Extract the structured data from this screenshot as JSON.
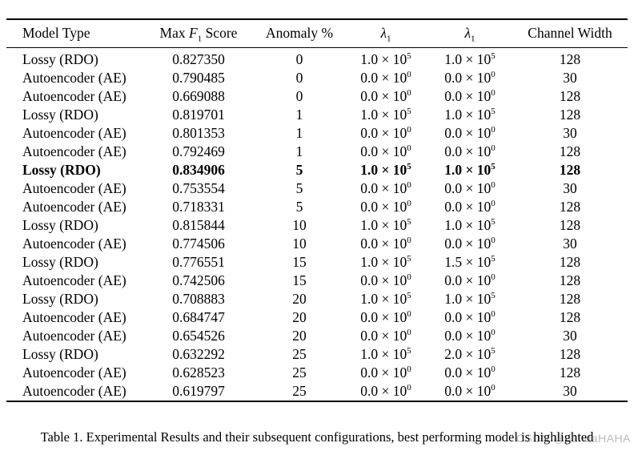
{
  "page": {
    "background": "#ffffff",
    "text_color": "#000000",
    "rule_color": "#000000"
  },
  "watermark": {
    "text": "CSDN @pandaHAHA",
    "color": "#bdbdbd"
  },
  "caption": {
    "text": "Table 1. Experimental Results and their subsequent configurations, best performing model is highlighted"
  },
  "table": {
    "headers": [
      {
        "id": "model-type",
        "label": "Model Type"
      },
      {
        "id": "max-f1-score",
        "label": "Max F_1 Score"
      },
      {
        "id": "anomaly-pct",
        "label": "Anomaly %"
      },
      {
        "id": "lambda-1-a",
        "label": "λ_1"
      },
      {
        "id": "lambda-1-b",
        "label": "λ_1"
      },
      {
        "id": "channel-width",
        "label": "Channel Width"
      }
    ],
    "rows": [
      {
        "model": "Lossy (RDO)",
        "score": "0.827350",
        "anomaly": "0",
        "lambda_a": "1.0 × 10^5",
        "lambda_b": "1.0 × 10^5",
        "channel_width": "128",
        "highlight": false
      },
      {
        "model": "Autoencoder (AE)",
        "score": "0.790485",
        "anomaly": "0",
        "lambda_a": "0.0 × 10^0",
        "lambda_b": "0.0 × 10^0",
        "channel_width": "30",
        "highlight": false
      },
      {
        "model": "Autoencoder (AE)",
        "score": "0.669088",
        "anomaly": "0",
        "lambda_a": "0.0 × 10^0",
        "lambda_b": "0.0 × 10^0",
        "channel_width": "128",
        "highlight": false
      },
      {
        "model": "Lossy (RDO)",
        "score": "0.819701",
        "anomaly": "1",
        "lambda_a": "1.0 × 10^5",
        "lambda_b": "1.0 × 10^5",
        "channel_width": "128",
        "highlight": false
      },
      {
        "model": "Autoencoder (AE)",
        "score": "0.801353",
        "anomaly": "1",
        "lambda_a": "0.0 × 10^0",
        "lambda_b": "0.0 × 10^0",
        "channel_width": "30",
        "highlight": false
      },
      {
        "model": "Autoencoder (AE)",
        "score": "0.792469",
        "anomaly": "1",
        "lambda_a": "0.0 × 10^0",
        "lambda_b": "0.0 × 10^0",
        "channel_width": "128",
        "highlight": false
      },
      {
        "model": "Lossy (RDO)",
        "score": "0.834906",
        "anomaly": "5",
        "lambda_a": "1.0 × 10^5",
        "lambda_b": "1.0 × 10^5",
        "channel_width": "128",
        "highlight": true
      },
      {
        "model": "Autoencoder (AE)",
        "score": "0.753554",
        "anomaly": "5",
        "lambda_a": "0.0 × 10^0",
        "lambda_b": "0.0 × 10^0",
        "channel_width": "30",
        "highlight": false
      },
      {
        "model": "Autoencoder (AE)",
        "score": "0.718331",
        "anomaly": "5",
        "lambda_a": "0.0 × 10^0",
        "lambda_b": "0.0 × 10^0",
        "channel_width": "128",
        "highlight": false
      },
      {
        "model": "Lossy (RDO)",
        "score": "0.815844",
        "anomaly": "10",
        "lambda_a": "1.0 × 10^5",
        "lambda_b": "1.0 × 10^5",
        "channel_width": "128",
        "highlight": false
      },
      {
        "model": "Autoencoder (AE)",
        "score": "0.774506",
        "anomaly": "10",
        "lambda_a": "0.0 × 10^0",
        "lambda_b": "0.0 × 10^0",
        "channel_width": "30",
        "highlight": false
      },
      {
        "model": "Lossy (RDO)",
        "score": "0.776551",
        "anomaly": "15",
        "lambda_a": "1.0 × 10^5",
        "lambda_b": "1.5 × 10^5",
        "channel_width": "128",
        "highlight": false
      },
      {
        "model": "Autoencoder (AE)",
        "score": "0.742506",
        "anomaly": "15",
        "lambda_a": "0.0 × 10^0",
        "lambda_b": "0.0 × 10^0",
        "channel_width": "128",
        "highlight": false
      },
      {
        "model": "Lossy (RDO)",
        "score": "0.708883",
        "anomaly": "20",
        "lambda_a": "1.0 × 10^5",
        "lambda_b": "1.0 × 10^5",
        "channel_width": "128",
        "highlight": false
      },
      {
        "model": "Autoencoder (AE)",
        "score": "0.684747",
        "anomaly": "20",
        "lambda_a": "0.0 × 10^0",
        "lambda_b": "0.0 × 10^0",
        "channel_width": "128",
        "highlight": false
      },
      {
        "model": "Autoencoder (AE)",
        "score": "0.654526",
        "anomaly": "20",
        "lambda_a": "0.0 × 10^0",
        "lambda_b": "0.0 × 10^0",
        "channel_width": "30",
        "highlight": false
      },
      {
        "model": "Lossy (RDO)",
        "score": "0.632292",
        "anomaly": "25",
        "lambda_a": "1.0 × 10^5",
        "lambda_b": "2.0 × 10^5",
        "channel_width": "128",
        "highlight": false
      },
      {
        "model": "Autoencoder (AE)",
        "score": "0.628523",
        "anomaly": "25",
        "lambda_a": "0.0 × 10^0",
        "lambda_b": "0.0 × 10^0",
        "channel_width": "128",
        "highlight": false
      },
      {
        "model": "Autoencoder (AE)",
        "score": "0.619797",
        "anomaly": "25",
        "lambda_a": "0.0 × 10^0",
        "lambda_b": "0.0 × 10^0",
        "channel_width": "30",
        "highlight": false
      }
    ]
  }
}
